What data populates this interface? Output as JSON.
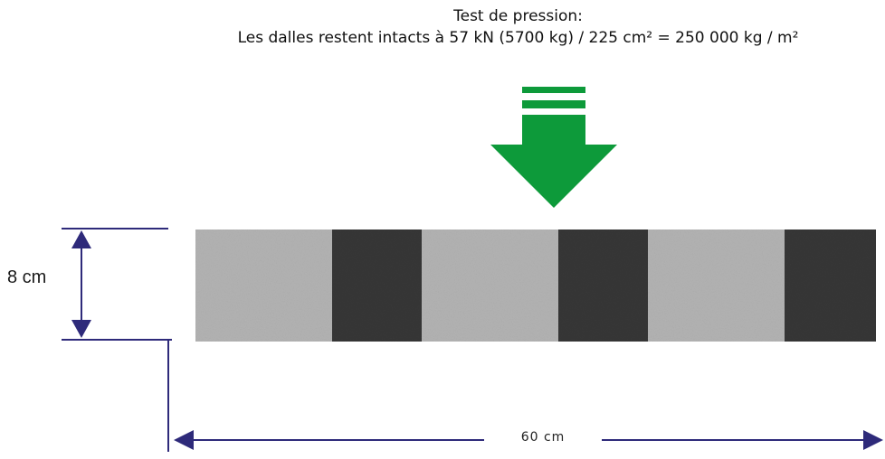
{
  "title": {
    "line1": "Test de pression:",
    "line2": "Les dalles restent intacts à 57 kN (5700 kg) / 225 cm² = 250 000 kg / m²"
  },
  "dimensions": {
    "height_label": "8 cm",
    "width_label": "60 cm"
  },
  "colors": {
    "arrow": "#0d9a3a",
    "dimension_lines": "#2e2a7a",
    "tile_light": "#b3b3b3",
    "tile_dark": "#373737"
  },
  "tile": {
    "stripe_pattern": [
      "light",
      "dark",
      "light",
      "dark",
      "light",
      "dark"
    ]
  },
  "icons": {
    "pressure": "down-arrow-icon"
  }
}
